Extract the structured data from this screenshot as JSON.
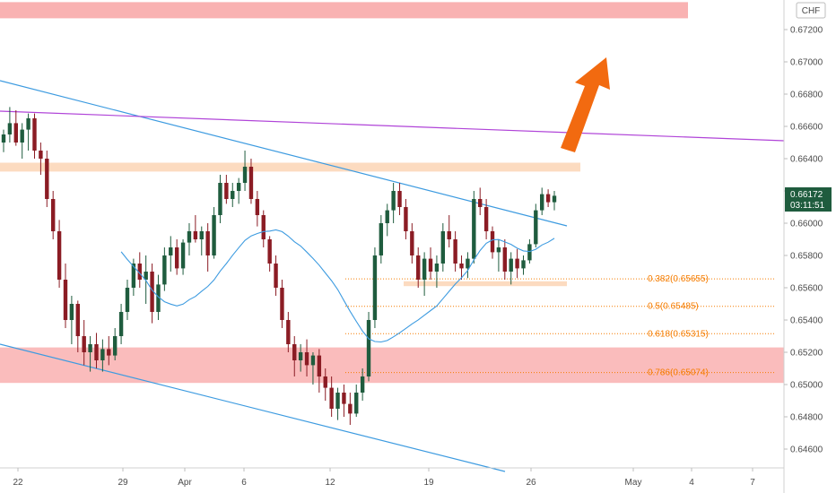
{
  "chart_data": {
    "type": "candlestick",
    "currency": "CHF",
    "last_price": "0.66172",
    "countdown": "03:11:51",
    "y_range": [
      0.645,
      0.6755
    ],
    "y_ticks": [
      "0.67200",
      "0.67000",
      "0.66800",
      "0.66600",
      "0.66400",
      "0.66200",
      "0.66000",
      "0.65800",
      "0.65600",
      "0.65400",
      "0.65200",
      "0.65000",
      "0.64800",
      "0.64600"
    ],
    "x_ticks": [
      "22",
      "29",
      "Apr",
      "6",
      "12",
      "19",
      "26",
      "May",
      "4",
      "7"
    ],
    "fib_levels": [
      {
        "ratio": "0.382",
        "label": "0.382(0.65655)",
        "price": 0.65655
      },
      {
        "ratio": "0.5",
        "label": "0.5(0.65485)",
        "price": 0.65485
      },
      {
        "ratio": "0.618",
        "label": "0.618(0.65315)",
        "price": 0.65315
      },
      {
        "ratio": "0.786",
        "label": "0.786(0.65074)",
        "price": 0.65074
      }
    ],
    "zones": [
      {
        "name": "supply-zone-top",
        "from": 0.6727,
        "to": 0.6737,
        "color": "#f8a5a5"
      },
      {
        "name": "resistance-zone",
        "from": 0.6632,
        "to": 0.66375,
        "color": "#fbd5b5"
      },
      {
        "name": "support-zone-small",
        "from": 0.6561,
        "to": 0.6564,
        "color": "#fbd5b5"
      },
      {
        "name": "demand-zone",
        "from": 0.6501,
        "to": 0.6523,
        "color": "#f8a5a5"
      }
    ],
    "trendlines": [
      {
        "name": "descending-channel-upper",
        "color": "#3d9be0"
      },
      {
        "name": "descending-channel-lower",
        "color": "#3d9be0"
      },
      {
        "name": "long-term-resistance",
        "color": "#b044d8"
      }
    ],
    "moving_average_color": "#3d9be0",
    "bull_color": "#1f5c3e",
    "bear_color": "#8b1c24",
    "arrow_color": "#f26a10",
    "candles": [
      [
        0.665,
        0.6658,
        0.6644,
        0.6655
      ],
      [
        0.6655,
        0.6672,
        0.665,
        0.6662
      ],
      [
        0.6662,
        0.667,
        0.6648,
        0.665
      ],
      [
        0.665,
        0.6662,
        0.664,
        0.6658
      ],
      [
        0.6658,
        0.6668,
        0.6645,
        0.6665
      ],
      [
        0.6665,
        0.6668,
        0.664,
        0.6645
      ],
      [
        0.6645,
        0.665,
        0.663,
        0.664
      ],
      [
        0.664,
        0.6645,
        0.661,
        0.6615
      ],
      [
        0.6615,
        0.662,
        0.659,
        0.6595
      ],
      [
        0.6595,
        0.6602,
        0.656,
        0.6565
      ],
      [
        0.6565,
        0.6575,
        0.6535,
        0.654
      ],
      [
        0.654,
        0.6555,
        0.6525,
        0.655
      ],
      [
        0.655,
        0.6552,
        0.652,
        0.653
      ],
      [
        0.653,
        0.654,
        0.6512,
        0.652
      ],
      [
        0.652,
        0.653,
        0.6508,
        0.6525
      ],
      [
        0.6525,
        0.6532,
        0.651,
        0.6515
      ],
      [
        0.6515,
        0.6528,
        0.6508,
        0.6522
      ],
      [
        0.6522,
        0.653,
        0.6512,
        0.6518
      ],
      [
        0.6518,
        0.6535,
        0.6515,
        0.653
      ],
      [
        0.653,
        0.655,
        0.6525,
        0.6545
      ],
      [
        0.6545,
        0.6565,
        0.654,
        0.656
      ],
      [
        0.656,
        0.6578,
        0.6555,
        0.6575
      ],
      [
        0.6575,
        0.6582,
        0.656,
        0.6565
      ],
      [
        0.6565,
        0.658,
        0.655,
        0.657
      ],
      [
        0.657,
        0.6575,
        0.6538,
        0.6545
      ],
      [
        0.6545,
        0.6568,
        0.654,
        0.6562
      ],
      [
        0.6562,
        0.6585,
        0.6558,
        0.658
      ],
      [
        0.658,
        0.6592,
        0.657,
        0.6585
      ],
      [
        0.6585,
        0.659,
        0.6568,
        0.6572
      ],
      [
        0.6572,
        0.659,
        0.6568,
        0.6588
      ],
      [
        0.6588,
        0.66,
        0.658,
        0.6595
      ],
      [
        0.6595,
        0.6605,
        0.6588,
        0.659
      ],
      [
        0.659,
        0.6598,
        0.658,
        0.6595
      ],
      [
        0.6595,
        0.66,
        0.657,
        0.658
      ],
      [
        0.658,
        0.661,
        0.6578,
        0.6605
      ],
      [
        0.6605,
        0.663,
        0.66,
        0.6625
      ],
      [
        0.6625,
        0.663,
        0.6612,
        0.6615
      ],
      [
        0.6615,
        0.6625,
        0.661,
        0.662
      ],
      [
        0.662,
        0.6628,
        0.6612,
        0.6625
      ],
      [
        0.6625,
        0.6645,
        0.662,
        0.6635
      ],
      [
        0.6635,
        0.664,
        0.6612,
        0.6615
      ],
      [
        0.6615,
        0.662,
        0.6598,
        0.6605
      ],
      [
        0.6605,
        0.6608,
        0.6585,
        0.659
      ],
      [
        0.659,
        0.6592,
        0.657,
        0.6575
      ],
      [
        0.6575,
        0.658,
        0.6555,
        0.656
      ],
      [
        0.656,
        0.6565,
        0.6535,
        0.654
      ],
      [
        0.654,
        0.6545,
        0.652,
        0.6525
      ],
      [
        0.6525,
        0.653,
        0.6505,
        0.6515
      ],
      [
        0.6515,
        0.6525,
        0.6508,
        0.652
      ],
      [
        0.652,
        0.6528,
        0.6505,
        0.6512
      ],
      [
        0.6512,
        0.652,
        0.65,
        0.6518
      ],
      [
        0.6518,
        0.6522,
        0.6495,
        0.6505
      ],
      [
        0.6505,
        0.651,
        0.649,
        0.6498
      ],
      [
        0.6498,
        0.6505,
        0.648,
        0.6485
      ],
      [
        0.6485,
        0.6498,
        0.6478,
        0.6495
      ],
      [
        0.6495,
        0.65,
        0.648,
        0.6488
      ],
      [
        0.6488,
        0.6495,
        0.6475,
        0.6482
      ],
      [
        0.6482,
        0.65,
        0.648,
        0.6495
      ],
      [
        0.6495,
        0.651,
        0.649,
        0.6505
      ],
      [
        0.6505,
        0.6545,
        0.6502,
        0.654
      ],
      [
        0.654,
        0.6585,
        0.6535,
        0.658
      ],
      [
        0.658,
        0.6605,
        0.6575,
        0.66
      ],
      [
        0.66,
        0.6612,
        0.6592,
        0.6608
      ],
      [
        0.6608,
        0.6625,
        0.66,
        0.662
      ],
      [
        0.662,
        0.6625,
        0.6605,
        0.661
      ],
      [
        0.661,
        0.6615,
        0.659,
        0.6595
      ],
      [
        0.6595,
        0.66,
        0.6575,
        0.658
      ],
      [
        0.658,
        0.6585,
        0.656,
        0.6565
      ],
      [
        0.6565,
        0.6582,
        0.6555,
        0.6578
      ],
      [
        0.6578,
        0.6585,
        0.6565,
        0.657
      ],
      [
        0.657,
        0.658,
        0.656,
        0.6575
      ],
      [
        0.6575,
        0.66,
        0.657,
        0.6595
      ],
      [
        0.6595,
        0.6605,
        0.6585,
        0.659
      ],
      [
        0.659,
        0.6595,
        0.657,
        0.6575
      ],
      [
        0.6575,
        0.658,
        0.6565,
        0.6572
      ],
      [
        0.6572,
        0.6582,
        0.6566,
        0.6578
      ],
      [
        0.6578,
        0.662,
        0.6575,
        0.6615
      ],
      [
        0.6615,
        0.6622,
        0.6605,
        0.661
      ],
      [
        0.661,
        0.6615,
        0.659,
        0.6595
      ],
      [
        0.6595,
        0.6598,
        0.6578,
        0.6582
      ],
      [
        0.6582,
        0.659,
        0.657,
        0.6585
      ],
      [
        0.6585,
        0.659,
        0.6565,
        0.657
      ],
      [
        0.657,
        0.6582,
        0.6562,
        0.6578
      ],
      [
        0.6578,
        0.6584,
        0.6566,
        0.6572
      ],
      [
        0.6572,
        0.658,
        0.6568,
        0.6577
      ],
      [
        0.6577,
        0.659,
        0.6575,
        0.6587
      ],
      [
        0.6587,
        0.6612,
        0.6585,
        0.6608
      ],
      [
        0.6608,
        0.6622,
        0.6605,
        0.6618
      ],
      [
        0.6618,
        0.6621,
        0.661,
        0.6613
      ],
      [
        0.6613,
        0.662,
        0.6608,
        0.6617
      ]
    ]
  }
}
